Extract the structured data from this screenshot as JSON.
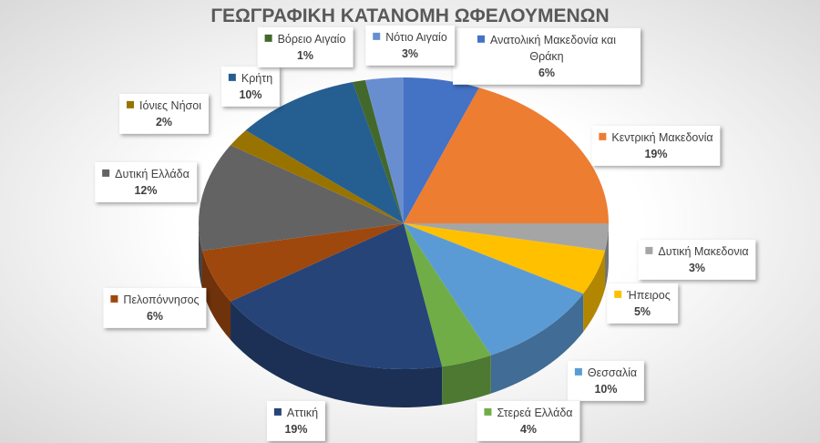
{
  "chart_data": {
    "type": "pie",
    "title": "ΓΕΩΓΡΑΦΙΚΗ ΚΑΤΑΝΟΜΗ ΩΦΕΛΟΥΜΕΝΩΝ",
    "categories": [
      "Ανατολική Μακεδονία και Θράκη",
      "Κεντρική Μακεδονία",
      "Δυτική Μακεδονια",
      "Ήπειρος",
      "Θεσσαλία",
      "Στερεά Ελλάδα",
      "Αττική",
      "Πελοπόννησος",
      "Δυτική Ελλάδα",
      "Ιόνιες Νήσοι",
      "Κρήτη",
      "Βόρειο Αιγαίο",
      "Νότιο Αιγαίο"
    ],
    "values": [
      6,
      19,
      3,
      5,
      10,
      4,
      19,
      6,
      12,
      2,
      10,
      1,
      3
    ],
    "value_labels": [
      "6%",
      "19%",
      "3%",
      "5%",
      "10%",
      "4%",
      "19%",
      "6%",
      "12%",
      "2%",
      "10%",
      "1%",
      "3%"
    ],
    "colors": [
      "#4472c4",
      "#ed7d31",
      "#a5a5a5",
      "#ffc000",
      "#5b9bd5",
      "#70ad47",
      "#264478",
      "#9e480e",
      "#636363",
      "#997300",
      "#255e91",
      "#43682b",
      "#698ed0"
    ]
  }
}
